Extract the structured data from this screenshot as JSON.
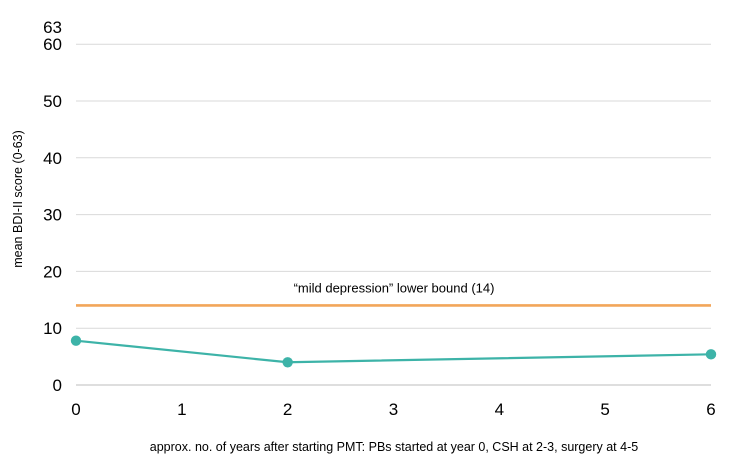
{
  "chart_data": {
    "type": "line",
    "title": "",
    "xlabel": "approx. no. of years after starting PMT: PBs started at year 0, CSH at 2-3, surgery at 4-5",
    "ylabel": "mean BDI-II score (0-63)",
    "xlim": [
      0,
      6
    ],
    "ylim": [
      0,
      63
    ],
    "x_ticks": [
      "0",
      "1",
      "2",
      "3",
      "4",
      "5",
      "6"
    ],
    "y_ticks": [
      "0",
      "10",
      "20",
      "30",
      "40",
      "50",
      "60",
      "63"
    ],
    "grid": true,
    "legend": "none",
    "series": [
      {
        "x": [
          0,
          2,
          6
        ],
        "values": [
          7.8,
          4.0,
          5.4
        ],
        "color": "#3db3a8"
      }
    ],
    "reference_lines": [
      {
        "y": 14,
        "label": "“mild depression” lower bound (14)",
        "color": "#f2a65a"
      }
    ]
  }
}
